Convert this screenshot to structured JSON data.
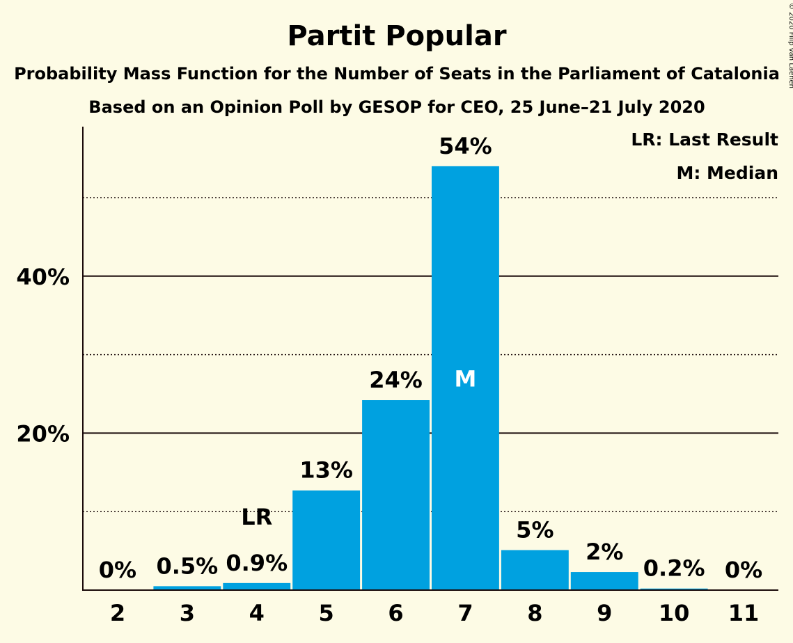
{
  "chart_data": {
    "type": "bar",
    "title": "Partit Popular",
    "subtitle": "Probability Mass Function for the Number of Seats in the Parliament of Catalonia",
    "subtitle2": "Based on an Opinion Poll by GESOP for CEO, 25 June–21 July 2020",
    "copyright": "© 2020 Filip van Laenen",
    "categories": [
      "2",
      "3",
      "4",
      "5",
      "6",
      "7",
      "8",
      "9",
      "10",
      "11"
    ],
    "values": [
      0,
      0.5,
      0.9,
      12.7,
      24.2,
      54.0,
      5.1,
      2.3,
      0.2,
      0
    ],
    "value_labels": [
      "0%",
      "0.5%",
      "0.9%",
      "13%",
      "24%",
      "54%",
      "5%",
      "2%",
      "0.2%",
      "0%"
    ],
    "ylim": [
      0,
      59
    ],
    "y_ticks": [
      {
        "value": 20,
        "label": "20%"
      },
      {
        "value": 40,
        "label": "40%"
      }
    ],
    "minor_gridlines": [
      10,
      30,
      50
    ],
    "last_result": {
      "category": "4",
      "label": "LR"
    },
    "median": {
      "category": "7",
      "label": "M"
    },
    "legend": {
      "position": "top-right",
      "items": [
        "LR: Last Result",
        "M: Median"
      ]
    },
    "colors": {
      "bar": "#00a1e0",
      "background": "#fdfbe5",
      "text": "#1a0a0a"
    }
  }
}
